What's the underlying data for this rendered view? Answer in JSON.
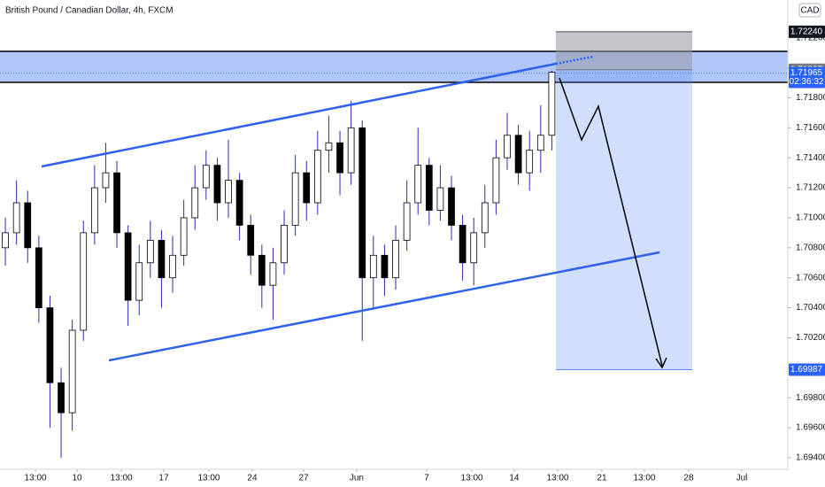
{
  "chart_data": {
    "type": "candlestick",
    "title": "British Pound / Canadian Dollar, 4h, FXCM",
    "currency": "CAD",
    "x": [
      0,
      1,
      2,
      3,
      4,
      5,
      6,
      7,
      8,
      9,
      10,
      11,
      12,
      13,
      14,
      15,
      16,
      17,
      18,
      19,
      20,
      21,
      22,
      23,
      24,
      25,
      26,
      27,
      28,
      29,
      30,
      31,
      32,
      33,
      34,
      35,
      36,
      37,
      38,
      39,
      40,
      41,
      42,
      43,
      44,
      45,
      46,
      47,
      48,
      49
    ],
    "open": [
      1.708,
      1.709,
      1.711,
      1.708,
      1.704,
      1.699,
      1.697,
      1.7025,
      1.709,
      1.712,
      1.713,
      1.709,
      1.7045,
      1.707,
      1.7085,
      1.706,
      1.7075,
      1.71,
      1.712,
      1.7135,
      1.711,
      1.7125,
      1.7095,
      1.7075,
      1.7055,
      1.707,
      1.7095,
      1.713,
      1.711,
      1.7145,
      1.715,
      1.713,
      1.716,
      1.706,
      1.7075,
      1.706,
      1.7085,
      1.711,
      1.7135,
      1.7105,
      1.712,
      1.7095,
      1.707,
      1.709,
      1.711,
      1.714,
      1.7155,
      1.713,
      1.7145,
      1.7155
    ],
    "high": [
      1.71,
      1.7125,
      1.7118,
      1.7088,
      1.7048,
      1.7,
      1.7032,
      1.7098,
      1.7135,
      1.715,
      1.7138,
      1.7095,
      1.7082,
      1.7098,
      1.7092,
      1.7088,
      1.7112,
      1.7135,
      1.7145,
      1.714,
      1.7152,
      1.713,
      1.7102,
      1.7082,
      1.708,
      1.7105,
      1.7142,
      1.7138,
      1.7158,
      1.7168,
      1.7158,
      1.7178,
      1.7165,
      1.7088,
      1.7082,
      1.7095,
      1.7125,
      1.716,
      1.714,
      1.7135,
      1.7128,
      1.7102,
      1.71,
      1.7122,
      1.7152,
      1.717,
      1.7162,
      1.7158,
      1.7175,
      1.7198
    ],
    "low": [
      1.7068,
      1.7082,
      1.707,
      1.703,
      1.696,
      1.694,
      1.6958,
      1.7018,
      1.7082,
      1.711,
      1.708,
      1.7028,
      1.7035,
      1.706,
      1.704,
      1.705,
      1.7068,
      1.7092,
      1.7112,
      1.7098,
      1.71,
      1.7085,
      1.7062,
      1.704,
      1.7032,
      1.7062,
      1.7088,
      1.7098,
      1.7102,
      1.713,
      1.7115,
      1.7122,
      1.7018,
      1.704,
      1.7048,
      1.7052,
      1.7078,
      1.7102,
      1.7095,
      1.7098,
      1.7085,
      1.7058,
      1.7055,
      1.708,
      1.7102,
      1.7132,
      1.7122,
      1.7118,
      1.713,
      1.7145
    ],
    "close": [
      1.709,
      1.711,
      1.708,
      1.704,
      1.699,
      1.697,
      1.7025,
      1.709,
      1.712,
      1.713,
      1.709,
      1.7045,
      1.707,
      1.7085,
      1.706,
      1.7075,
      1.71,
      1.712,
      1.7135,
      1.711,
      1.7125,
      1.7095,
      1.7075,
      1.7055,
      1.707,
      1.7095,
      1.713,
      1.711,
      1.7145,
      1.715,
      1.713,
      1.716,
      1.706,
      1.7075,
      1.706,
      1.7085,
      1.711,
      1.7135,
      1.7105,
      1.712,
      1.7095,
      1.707,
      1.709,
      1.711,
      1.714,
      1.7155,
      1.713,
      1.7145,
      1.7155,
      1.7197
    ],
    "up_color": "#ffffff",
    "down_color": "#000000",
    "wick_color": "#2b2bb5",
    "xlim": [
      -0.48,
      70.16
    ],
    "ylim": [
      1.69323,
      1.72452
    ],
    "xticks": [
      {
        "value": 2.7,
        "label": "13:00"
      },
      {
        "value": 6.43,
        "label": "10"
      },
      {
        "value": 10.4,
        "label": "13:00"
      },
      {
        "value": 14.2,
        "label": "17"
      },
      {
        "value": 18.25,
        "label": "13:00"
      },
      {
        "value": 22.14,
        "label": "24"
      },
      {
        "value": 26.75,
        "label": "27"
      },
      {
        "value": 31.5,
        "label": "Jun"
      },
      {
        "value": 37.78,
        "label": "7"
      },
      {
        "value": 41.83,
        "label": "13:00"
      },
      {
        "value": 45.63,
        "label": "14"
      },
      {
        "value": 49.52,
        "label": "13:00"
      },
      {
        "value": 53.49,
        "label": "21"
      },
      {
        "value": 57.3,
        "label": "13:00"
      },
      {
        "value": 61.27,
        "label": "28"
      },
      {
        "value": 66.03,
        "label": "Jul"
      }
    ],
    "yticks": [
      {
        "value": 1.694,
        "label": "1.69400"
      },
      {
        "value": 1.696,
        "label": "1.69600"
      },
      {
        "value": 1.698,
        "label": "1.69800"
      },
      {
        "value": 1.7,
        "label": "1.70000"
      },
      {
        "value": 1.702,
        "label": "1.70200"
      },
      {
        "value": 1.704,
        "label": "1.70400"
      },
      {
        "value": 1.706,
        "label": "1.70600"
      },
      {
        "value": 1.708,
        "label": "1.70800"
      },
      {
        "value": 1.71,
        "label": "1.71000"
      },
      {
        "value": 1.712,
        "label": "1.71200"
      },
      {
        "value": 1.714,
        "label": "1.71400"
      },
      {
        "value": 1.716,
        "label": "1.71600"
      },
      {
        "value": 1.718,
        "label": "1.71800"
      },
      {
        "value": 1.72,
        "label": "1.72000"
      },
      {
        "value": 1.722,
        "label": "1.72200"
      }
    ],
    "stop_price": {
      "value": 1.7224,
      "label": "1.72240"
    },
    "entry_price": {
      "value": 1.71987,
      "label": "1.71987"
    },
    "target_price": {
      "value": 1.69987,
      "label": "1.69987"
    },
    "last_price": {
      "value": 1.71965,
      "label": "1.71965"
    },
    "countdown": "02:36:32"
  }
}
